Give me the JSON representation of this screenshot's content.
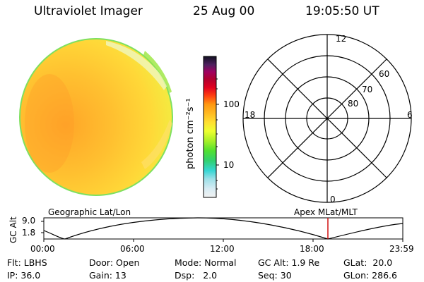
{
  "header": {
    "title": "Ultraviolet Imager",
    "date": "25 Aug 00",
    "time": "19:05:50 UT"
  },
  "colorbar": {
    "unit_label": "photon cm⁻²s⁻¹",
    "ticks": [
      "100",
      "10"
    ],
    "scale": "log"
  },
  "polar_plot": {
    "mlt_labels": {
      "top": "12",
      "left": "18",
      "right": "6",
      "bottom": "0"
    },
    "lat_labels": [
      "60",
      "70",
      "80"
    ]
  },
  "timeline": {
    "left_title": "Geographic Lat/Lon",
    "right_title": "Apex MLat/MLT",
    "y_axis_label": "GC Alt",
    "y_ticks": [
      "9.0",
      "1.8"
    ],
    "x_ticks": [
      "00:00",
      "06:00",
      "12:00",
      "18:00",
      "23:59"
    ],
    "current_marker_time": "19:05:50",
    "marker_color": "#cc0000"
  },
  "info": {
    "flt": "Flt: LBHS",
    "ip": "IP: 36.0",
    "door": "Door: Open",
    "gain": "Gain: 13",
    "mode": "Mode: Normal",
    "dsp": "Dsp:   2.0",
    "gc_alt": "GC Alt: 1.9 Re",
    "seq": "Seq: 30",
    "glat": "GLat:  20.0",
    "glon": "GLon: 286.6"
  }
}
